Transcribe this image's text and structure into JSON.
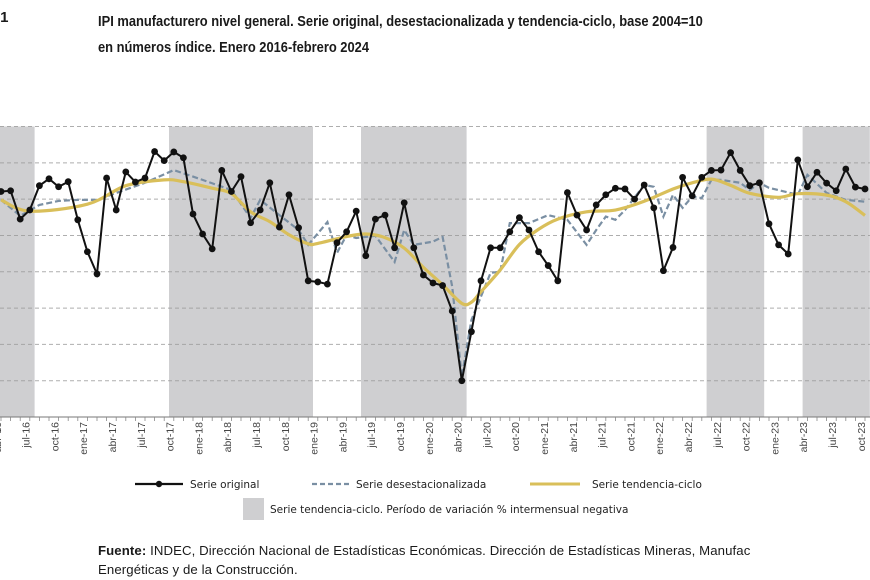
{
  "figure_number": ".1",
  "title_line1": "IPI manufacturero nivel general. Serie original, desestacionalizada y tendencia-ciclo, base 2004=10",
  "title_line2": "en números índice. Enero 2016-febrero 2024",
  "legend": {
    "original": "Serie original",
    "deseasonalized": "Serie desestacionalizada",
    "trend": "Serie tendencia-ciclo",
    "shading": "Serie tendencia-ciclo. Período de variación % intermensual negativa"
  },
  "footer": {
    "label": "Fuente:",
    "text_line1": " INDEC, Dirección Nacional de Estadísticas Económicas. Dirección de Estadísticas Mineras, Manufac",
    "text_line2": "Energéticas y de la Construcción."
  },
  "chart_data": {
    "type": "line",
    "title": "IPI manufacturero nivel general. Serie original, desestacionalizada y tendencia-ciclo, base 2004=10",
    "xlabel": "",
    "ylabel": "",
    "y_units_note_visible": false,
    "ylim": [
      0,
      8
    ],
    "grid": "horizontal dashed",
    "legend_position": "bottom",
    "colors": {
      "original": "#111111",
      "deseasonalized": "#7a8fa3",
      "trend": "#d9bf5a",
      "shading": "#cfcfd1"
    },
    "x": [
      "abr-16",
      "may-16",
      "jun-16",
      "jul-16",
      "ago-16",
      "sep-16",
      "oct-16",
      "nov-16",
      "dic-16",
      "ene-17",
      "feb-17",
      "mar-17",
      "abr-17",
      "may-17",
      "jun-17",
      "jul-17",
      "ago-17",
      "sep-17",
      "oct-17",
      "nov-17",
      "dic-17",
      "ene-18",
      "feb-18",
      "mar-18",
      "abr-18",
      "may-18",
      "jun-18",
      "jul-18",
      "ago-18",
      "sep-18",
      "oct-18",
      "nov-18",
      "dic-18",
      "ene-19",
      "feb-19",
      "mar-19",
      "abr-19",
      "may-19",
      "jun-19",
      "jul-19",
      "ago-19",
      "sep-19",
      "oct-19",
      "nov-19",
      "dic-19",
      "ene-20",
      "feb-20",
      "mar-20",
      "abr-20",
      "may-20",
      "jun-20",
      "jul-20",
      "ago-20",
      "sep-20",
      "oct-20",
      "nov-20",
      "dic-20",
      "ene-21",
      "feb-21",
      "mar-21",
      "abr-21",
      "may-21",
      "jun-21",
      "jul-21",
      "ago-21",
      "sep-21",
      "oct-21",
      "nov-21",
      "dic-21",
      "ene-22",
      "feb-22",
      "mar-22",
      "abr-22",
      "may-22",
      "jun-22",
      "jul-22",
      "ago-22",
      "sep-22",
      "oct-22",
      "nov-22",
      "dic-22",
      "ene-23",
      "feb-23",
      "mar-23",
      "abr-23",
      "may-23",
      "jun-23",
      "jul-23",
      "ago-23",
      "sep-23",
      "oct-23"
    ],
    "series": [
      {
        "name": "Serie original",
        "values": [
          6.21,
          6.23,
          5.45,
          5.7,
          6.37,
          6.56,
          6.34,
          6.48,
          5.43,
          4.55,
          3.94,
          6.58,
          5.7,
          6.75,
          6.47,
          6.58,
          7.31,
          7.06,
          7.3,
          7.14,
          5.59,
          5.04,
          4.63,
          6.79,
          6.21,
          6.62,
          5.35,
          5.7,
          6.45,
          5.23,
          6.12,
          5.21,
          3.75,
          3.72,
          3.66,
          4.8,
          5.1,
          5.67,
          4.44,
          5.45,
          5.56,
          4.66,
          5.9,
          4.66,
          3.91,
          3.69,
          3.62,
          2.92,
          1.0,
          2.35,
          3.75,
          4.66,
          4.66,
          5.1,
          5.49,
          5.15,
          4.55,
          4.17,
          3.75,
          6.18,
          5.56,
          5.15,
          5.84,
          6.12,
          6.3,
          6.28,
          6.0,
          6.39,
          5.76,
          4.03,
          4.67,
          6.6,
          6.09,
          6.6,
          6.79,
          6.8,
          7.28,
          6.79,
          6.37,
          6.45,
          5.32,
          4.74,
          4.49,
          7.08,
          6.34,
          6.74,
          6.44,
          6.23,
          6.83,
          6.33,
          6.28
        ]
      },
      {
        "name": "Serie desestacionalizada",
        "points": [
          [
            "abr-16",
            5.98
          ],
          [
            "jun-16",
            5.54
          ],
          [
            "ago-16",
            5.84
          ],
          [
            "oct-16",
            5.95
          ],
          [
            "dic-16",
            5.98
          ],
          [
            "feb-17",
            5.98
          ],
          [
            "abr-17",
            6.17
          ],
          [
            "jul-17",
            6.45
          ],
          [
            "oct-17",
            6.8
          ],
          [
            "ene-18",
            6.53
          ],
          [
            "abr-18",
            6.25
          ],
          [
            "jun-18",
            5.48
          ],
          [
            "jul-18",
            5.98
          ],
          [
            "sep-18",
            5.56
          ],
          [
            "nov-18",
            5.15
          ],
          [
            "dic-18",
            4.74
          ],
          [
            "feb-19",
            5.37
          ],
          [
            "mar-19",
            4.52
          ],
          [
            "abr-19",
            5.01
          ],
          [
            "may-19",
            4.93
          ],
          [
            "jul-19",
            4.99
          ],
          [
            "sep-19",
            4.27
          ],
          [
            "oct-19",
            5.15
          ],
          [
            "nov-19",
            4.74
          ],
          [
            "ene-20",
            4.83
          ],
          [
            "feb-20",
            4.96
          ],
          [
            "mar-20",
            3.59
          ],
          [
            "abr-20",
            1.11
          ],
          [
            "may-20",
            2.67
          ],
          [
            "jul-20",
            3.97
          ],
          [
            "ago-20",
            4.0
          ],
          [
            "sep-20",
            5.34
          ],
          [
            "nov-20",
            5.34
          ],
          [
            "ene-21",
            5.56
          ],
          [
            "mar-21",
            5.43
          ],
          [
            "may-21",
            4.74
          ],
          [
            "jun-21",
            5.15
          ],
          [
            "jul-21",
            5.52
          ],
          [
            "ago-21",
            5.43
          ],
          [
            "sep-21",
            5.7
          ],
          [
            "nov-21",
            6.39
          ],
          [
            "dic-21",
            6.34
          ],
          [
            "ene-22",
            5.52
          ],
          [
            "feb-22",
            6.12
          ],
          [
            "mar-22",
            5.76
          ],
          [
            "abr-22",
            6.07
          ],
          [
            "may-22",
            6.03
          ],
          [
            "jun-22",
            6.53
          ],
          [
            "jul-22",
            6.53
          ],
          [
            "sep-22",
            6.45
          ],
          [
            "oct-22",
            6.25
          ],
          [
            "nov-22",
            6.45
          ],
          [
            "dic-22",
            6.31
          ],
          [
            "mar-23",
            6.12
          ],
          [
            "abr-23",
            6.67
          ],
          [
            "jun-23",
            6.17
          ],
          [
            "ago-23",
            5.98
          ],
          [
            "oct-23",
            5.93
          ]
        ]
      },
      {
        "name": "Serie tendencia-ciclo",
        "points": [
          [
            "abr-16",
            5.98
          ],
          [
            "jul-16",
            5.67
          ],
          [
            "ene-17",
            5.86
          ],
          [
            "may-17",
            6.37
          ],
          [
            "sep-17",
            6.53
          ],
          [
            "nov-17",
            6.48
          ],
          [
            "feb-18",
            6.3
          ],
          [
            "abr-18",
            6.15
          ],
          [
            "jun-18",
            5.65
          ],
          [
            "ago-18",
            5.38
          ],
          [
            "oct-18",
            5.02
          ],
          [
            "dic-18",
            4.77
          ],
          [
            "ene-19",
            4.78
          ],
          [
            "abr-19",
            4.97
          ],
          [
            "jun-19",
            5.04
          ],
          [
            "ago-19",
            4.94
          ],
          [
            "oct-19",
            4.65
          ],
          [
            "dic-19",
            4.12
          ],
          [
            "feb-20",
            3.64
          ],
          [
            "abr-20",
            3.13
          ],
          [
            "may-20",
            3.16
          ],
          [
            "jun-20",
            3.45
          ],
          [
            "ago-20",
            4.05
          ],
          [
            "oct-20",
            4.75
          ],
          [
            "dic-20",
            5.17
          ],
          [
            "feb-21",
            5.45
          ],
          [
            "may-21",
            5.65
          ],
          [
            "ago-21",
            5.7
          ],
          [
            "nov-21",
            5.94
          ],
          [
            "feb-22",
            6.28
          ],
          [
            "abr-22",
            6.45
          ],
          [
            "jun-22",
            6.55
          ],
          [
            "ago-22",
            6.38
          ],
          [
            "oct-22",
            6.16
          ],
          [
            "ene-23",
            6.05
          ],
          [
            "mar-23",
            6.15
          ],
          [
            "jun-23",
            6.11
          ],
          [
            "ago-23",
            5.93
          ],
          [
            "oct-23",
            5.55
          ]
        ]
      }
    ],
    "shaded_periods": [
      {
        "from": "abr-16",
        "to": "jul-16"
      },
      {
        "from": "oct-17",
        "to": "dic-18"
      },
      {
        "from": "jun-19",
        "to": "abr-20"
      },
      {
        "from": "jun-22",
        "to": "nov-22"
      },
      {
        "from": "abr-23",
        "to": "oct-23"
      }
    ]
  }
}
